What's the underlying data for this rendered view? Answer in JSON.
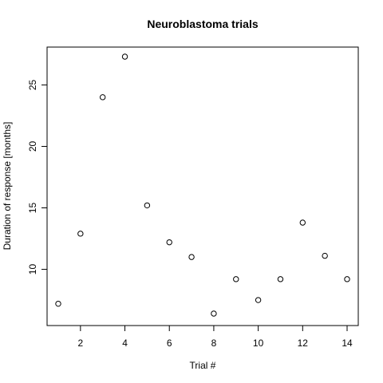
{
  "chart_data": {
    "type": "scatter",
    "title": "Neuroblastoma trials",
    "xlabel": "Trial #",
    "ylabel": "Duration of response [months]",
    "xlim": [
      1,
      14
    ],
    "ylim": [
      6.4,
      27.3
    ],
    "grid": false,
    "legend": "none",
    "x_ticks": [
      2,
      4,
      6,
      8,
      10,
      12,
      14
    ],
    "y_ticks": [
      10,
      15,
      20,
      25
    ],
    "x_tick_labels": [
      "2",
      "4",
      "6",
      "8",
      "10",
      "12",
      "14"
    ],
    "y_tick_labels": [
      "10",
      "15",
      "20",
      "25"
    ],
    "series": [
      {
        "x": [
          1,
          2,
          3,
          4,
          5,
          6,
          7,
          8,
          9,
          10,
          11,
          12,
          13,
          14
        ],
        "y": [
          7.2,
          12.9,
          24.0,
          27.3,
          15.2,
          12.2,
          11.0,
          6.4,
          9.2,
          7.5,
          9.2,
          13.8,
          11.1,
          9.2
        ]
      }
    ],
    "colors": {
      "marker": "#000000",
      "axis": "#000000",
      "background": "#ffffff"
    }
  }
}
